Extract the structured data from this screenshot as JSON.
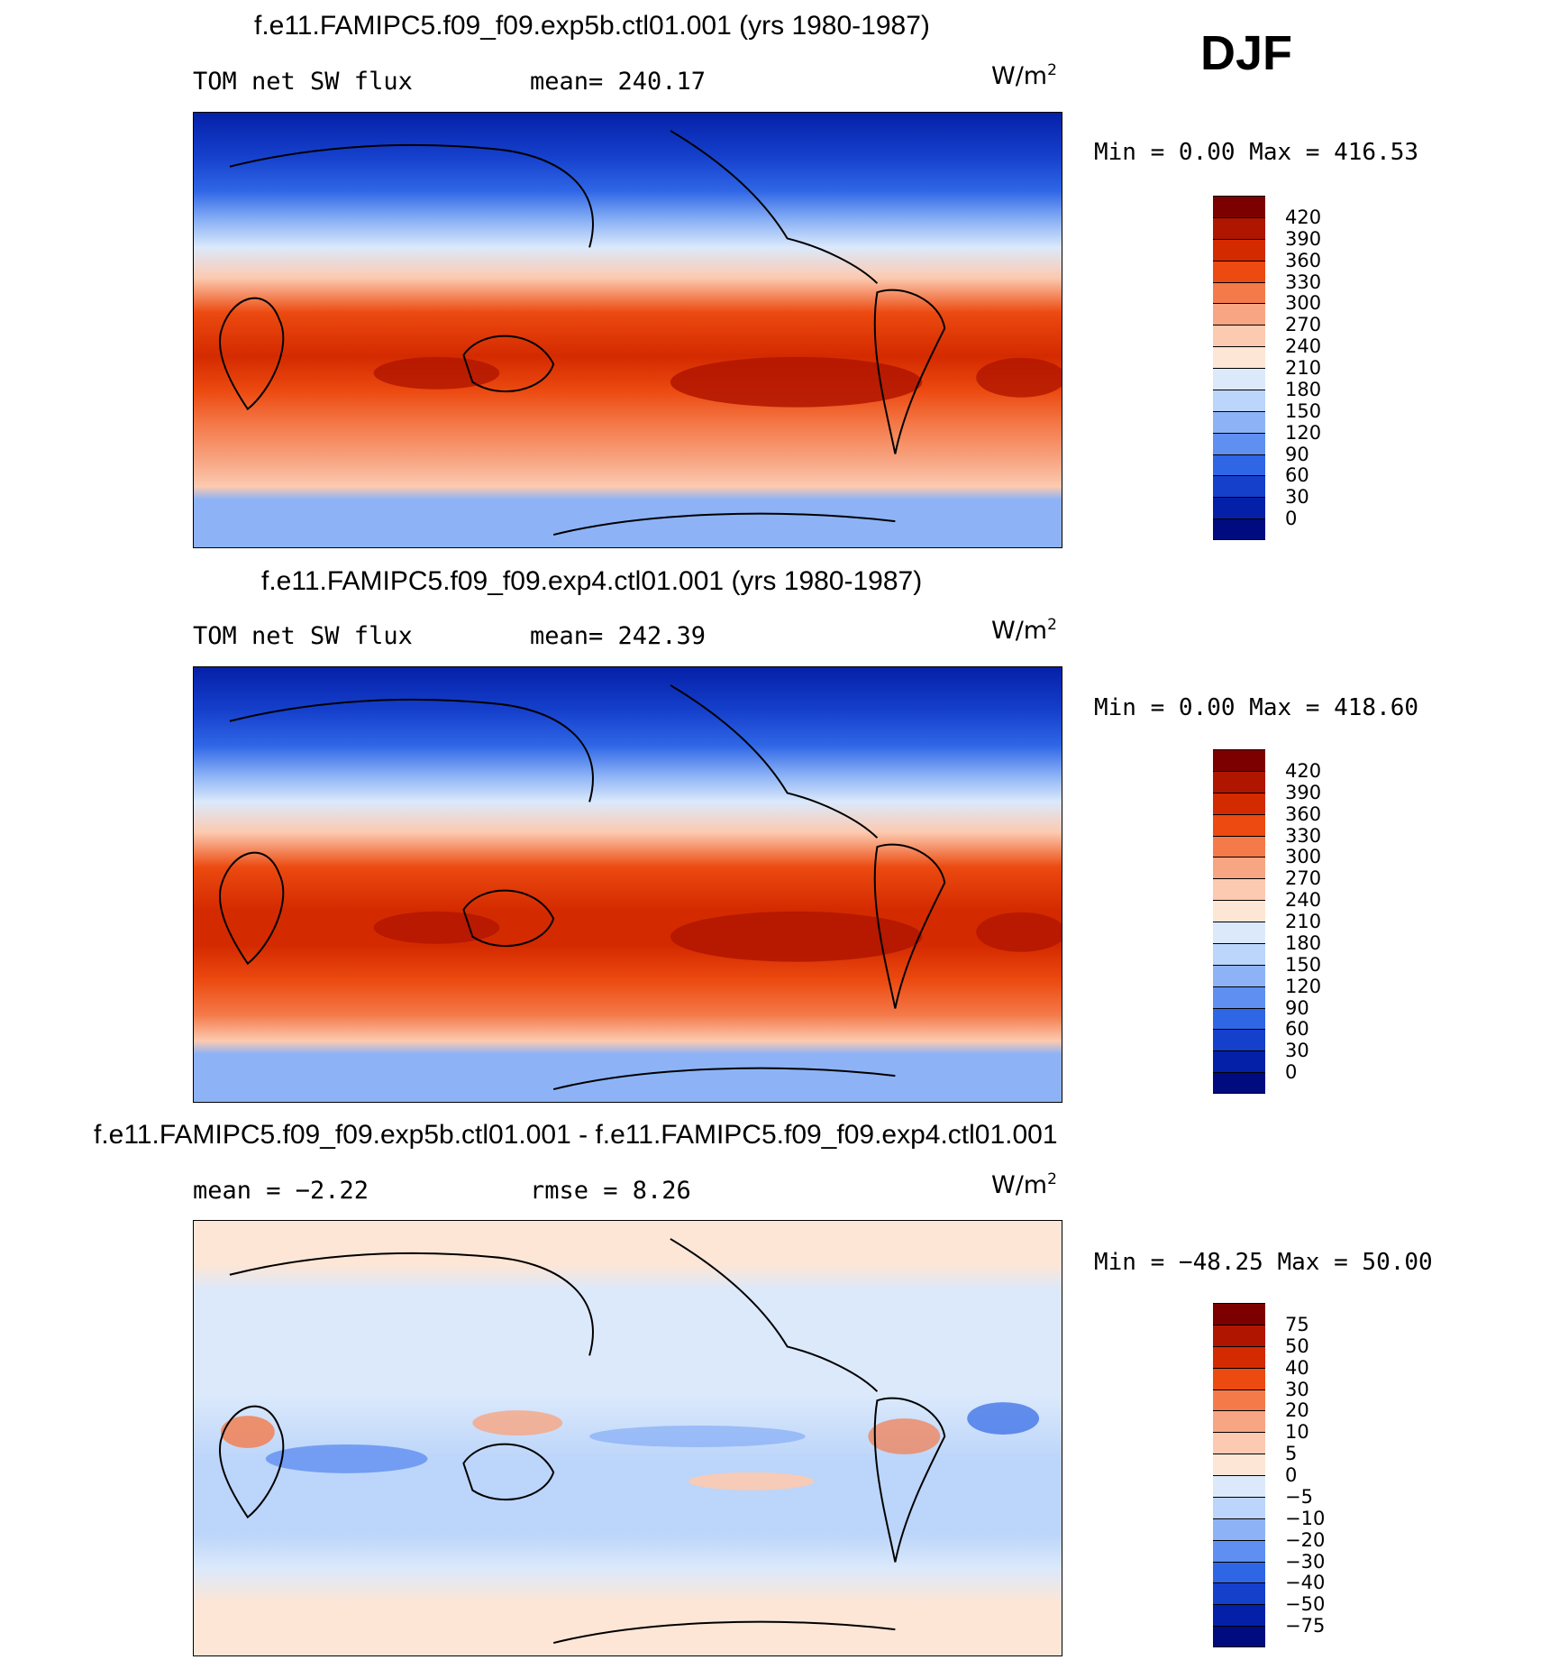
{
  "season": "DJF",
  "units_base": "W/m",
  "units_exp": "2",
  "panels": [
    {
      "title": "f.e11.FAMIPC5.f09_f09.exp5b.ctl01.001 (yrs 1980-1987)",
      "left_label": "TOM net SW flux",
      "right_label": "mean= 240.17",
      "minmax": "Min =    0.00 Max = 416.53",
      "colorbar_labels": [
        "420",
        "390",
        "360",
        "330",
        "300",
        "270",
        "240",
        "210",
        "180",
        "150",
        "120",
        "90",
        "60",
        "30",
        "0"
      ]
    },
    {
      "title": "f.e11.FAMIPC5.f09_f09.exp4.ctl01.001 (yrs 1980-1987)",
      "left_label": "TOM net SW flux",
      "right_label": "mean= 242.39",
      "minmax": "Min =    0.00 Max = 418.60",
      "colorbar_labels": [
        "420",
        "390",
        "360",
        "330",
        "300",
        "270",
        "240",
        "210",
        "180",
        "150",
        "120",
        "90",
        "60",
        "30",
        "0"
      ]
    },
    {
      "title": "f.e11.FAMIPC5.f09_f09.exp5b.ctl01.001 - f.e11.FAMIPC5.f09_f09.exp4.ctl01.001",
      "left_label": "mean =   −2.22",
      "right_label": "rmse =    8.26",
      "minmax": "Min = −48.25 Max =  50.00",
      "colorbar_labels": [
        "75",
        "50",
        "40",
        "30",
        "20",
        "10",
        "5",
        "0",
        "−5",
        "−10",
        "−20",
        "−30",
        "−40",
        "−50",
        "−75"
      ]
    }
  ],
  "colors": {
    "abs_scale": [
      "#7d0000",
      "#b01500",
      "#d42a00",
      "#ec4a10",
      "#f47a4a",
      "#f7a582",
      "#fccab0",
      "#fde6d6",
      "#dbe9fb",
      "#bcd5fa",
      "#8db3f6",
      "#5f8ff0",
      "#2f66e6",
      "#1540cc",
      "#0520a8",
      "#000b80"
    ],
    "diff_scale": [
      "#7d0000",
      "#b01500",
      "#d42a00",
      "#ec4a10",
      "#f47a4a",
      "#f7a582",
      "#fccab0",
      "#fde6d6",
      "#dbe9fb",
      "#bcd5fa",
      "#8db3f6",
      "#5f8ff0",
      "#2f66e6",
      "#1540cc",
      "#0520a8",
      "#000b80"
    ]
  }
}
